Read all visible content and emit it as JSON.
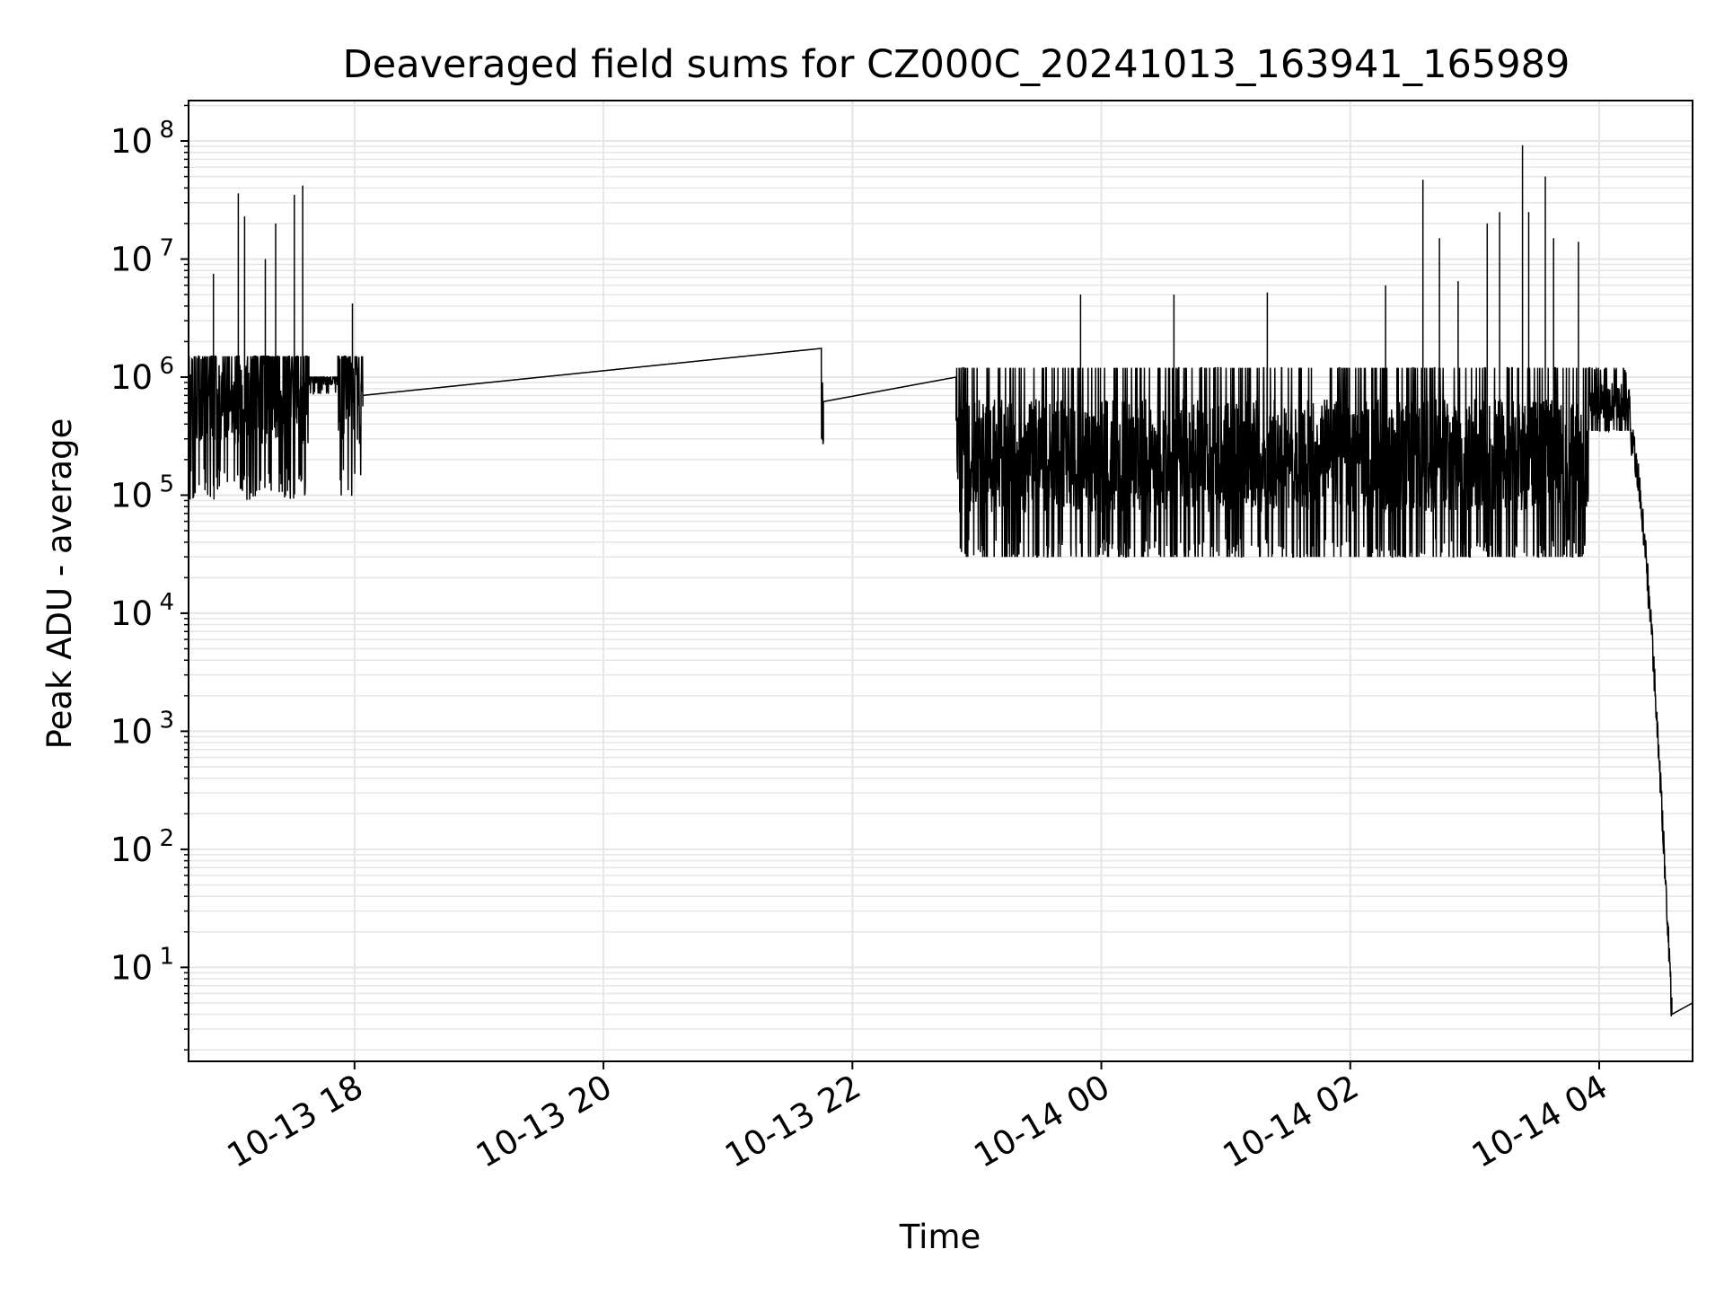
{
  "chart_data": {
    "type": "line",
    "title": "Deaveraged field sums for CZ000C_20241013_163941_165989",
    "xlabel": "Time",
    "ylabel": "Peak ADU - average",
    "x_axis": {
      "type": "time",
      "range": [
        "2024-10-13 16:40",
        "2024-10-14 04:45"
      ],
      "tick_values": [
        "2024-10-13 18:00",
        "2024-10-13 20:00",
        "2024-10-13 22:00",
        "2024-10-14 00:00",
        "2024-10-14 02:00",
        "2024-10-14 04:00"
      ],
      "tick_labels": [
        "10-13 18",
        "10-13 20",
        "10-13 22",
        "10-14 00",
        "10-14 02",
        "10-14 04"
      ],
      "tick_rotation_deg": 30
    },
    "y_axis": {
      "scale": "log",
      "range": [
        1.6,
        220000000
      ],
      "tick_values": [
        10,
        100,
        1000,
        10000,
        100000,
        1000000,
        10000000,
        100000000
      ],
      "tick_labels": [
        {
          "base": "10",
          "exp": "1"
        },
        {
          "base": "10",
          "exp": "2"
        },
        {
          "base": "10",
          "exp": "3"
        },
        {
          "base": "10",
          "exp": "4"
        },
        {
          "base": "10",
          "exp": "5"
        },
        {
          "base": "10",
          "exp": "6"
        },
        {
          "base": "10",
          "exp": "7"
        },
        {
          "base": "10",
          "exp": "8"
        }
      ]
    },
    "grid": {
      "major": true,
      "minor_y": true
    },
    "line_color": "#000000",
    "grid_color": "#e6e6e6",
    "series": [
      {
        "segments": [
          {
            "start": "2024-10-13 16:40",
            "end": "2024-10-13 17:38",
            "baseline": 700000,
            "low": 50000,
            "high": 1500000,
            "spikes": [
              {
                "t": "2024-10-13 17:04",
                "v": 36000000
              },
              {
                "t": "2024-10-13 17:07",
                "v": 23000000
              },
              {
                "t": "2024-10-13 17:17",
                "v": 10000000
              },
              {
                "t": "2024-10-13 17:22",
                "v": 20000000
              },
              {
                "t": "2024-10-13 17:31",
                "v": 35000000
              },
              {
                "t": "2024-10-13 17:35",
                "v": 42000000
              },
              {
                "t": "2024-10-13 16:52",
                "v": 7500000
              }
            ]
          },
          {
            "start": "2024-10-13 17:38",
            "end": "2024-10-13 17:52",
            "baseline": 1000000,
            "low": 550000,
            "high": 1000000,
            "spikes": []
          },
          {
            "start": "2024-10-13 17:52",
            "end": "2024-10-13 18:04",
            "baseline": 650000,
            "low": 60000,
            "high": 1500000,
            "spikes": [
              {
                "t": "2024-10-13 17:59",
                "v": 4200000
              }
            ]
          },
          {
            "start": "2024-10-13 18:04",
            "end": "2024-10-13 21:45",
            "baseline": 700000,
            "low": 700000,
            "high": 1750000,
            "spikes": []
          },
          {
            "start": "2024-10-13 21:45",
            "end": "2024-10-13 21:46",
            "baseline": 600000,
            "low": 270000,
            "high": 1100000,
            "spikes": []
          },
          {
            "start": "2024-10-13 21:46",
            "end": "2024-10-13 22:50",
            "baseline": 620000,
            "low": 620000,
            "high": 1000000,
            "spikes": []
          },
          {
            "start": "2024-10-13 22:50",
            "end": "2024-10-14 03:55",
            "baseline": 200000,
            "low": 30000,
            "high": 1200000,
            "spikes": [
              {
                "t": "2024-10-13 23:50",
                "v": 5000000
              },
              {
                "t": "2024-10-14 00:35",
                "v": 5000000
              },
              {
                "t": "2024-10-14 01:20",
                "v": 5200000
              },
              {
                "t": "2024-10-14 02:17",
                "v": 6000000
              },
              {
                "t": "2024-10-14 02:35",
                "v": 47000000
              },
              {
                "t": "2024-10-14 02:43",
                "v": 15000000
              },
              {
                "t": "2024-10-14 02:52",
                "v": 6500000
              },
              {
                "t": "2024-10-14 03:06",
                "v": 20000000
              },
              {
                "t": "2024-10-14 03:12",
                "v": 25000000
              },
              {
                "t": "2024-10-14 03:23",
                "v": 92000000
              },
              {
                "t": "2024-10-14 03:26",
                "v": 25000000
              },
              {
                "t": "2024-10-14 03:34",
                "v": 50000000
              },
              {
                "t": "2024-10-14 03:38",
                "v": 15000000
              },
              {
                "t": "2024-10-14 03:50",
                "v": 14000000
              }
            ]
          },
          {
            "start": "2024-10-14 03:55",
            "end": "2024-10-14 04:15",
            "baseline": 600000,
            "low": 350000,
            "high": 1200000,
            "spikes": []
          },
          {
            "start": "2024-10-14 04:15",
            "end": "2024-10-14 04:35",
            "baseline": 1000,
            "low": 4,
            "high": 300000,
            "spikes": []
          },
          {
            "start": "2024-10-14 04:35",
            "end": "2024-10-14 04:45",
            "baseline": 4,
            "low": 4,
            "high": 5,
            "spikes": []
          }
        ]
      }
    ]
  }
}
